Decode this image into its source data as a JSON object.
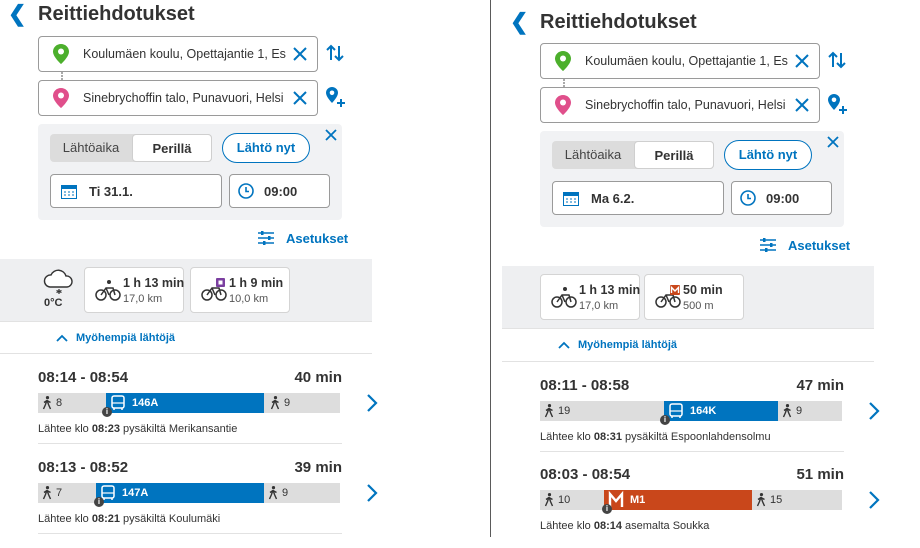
{
  "colors": {
    "brand": "#0074bf",
    "bus": "#0074bf",
    "metro": "#c9471b",
    "origin_pin": "#4caf2c",
    "destination_pin": "#e04f8b"
  },
  "left": {
    "title": "Reittiehdotukset",
    "origin": "Koulumäen koulu, Opettajantie 1, Es",
    "destination": "Sinebrychoffin talo, Punavuori, Helsi",
    "tab_departure": "Lähtöaika",
    "tab_arrival": "Perillä",
    "depart_now": "Lähtö nyt",
    "date": "Ti 31.1.",
    "time": "09:00",
    "settings": "Asetukset",
    "weather_temp": "0°C",
    "modes": [
      {
        "duration": "1 h 13 min",
        "distance": "17,0 km",
        "icon": "bicycle-icon"
      },
      {
        "duration": "1 h 9 min",
        "distance": "10,0 km",
        "icon": "bicycle-parking-icon"
      }
    ],
    "later": "Myöhempiä lähtöjä",
    "itineraries": [
      {
        "times": "08:14 - 08:54",
        "duration": "40 min",
        "walk_before": "8",
        "line": "146A",
        "mode": "bus",
        "walk_after": "9",
        "dep_prefix": "Lähtee klo",
        "dep_time": "08:23",
        "dep_suffix": "pysäkiltä Merikansantie"
      },
      {
        "times": "08:13 - 08:52",
        "duration": "39 min",
        "walk_before": "7",
        "line": "147A",
        "mode": "bus",
        "walk_after": "9",
        "dep_prefix": "Lähtee klo",
        "dep_time": "08:21",
        "dep_suffix": "pysäkiltä Koulumäki"
      }
    ]
  },
  "right": {
    "title": "Reittiehdotukset",
    "origin": "Koulumäen koulu, Opettajantie 1, Es",
    "destination": "Sinebrychoffin talo, Punavuori, Helsi",
    "tab_departure": "Lähtöaika",
    "tab_arrival": "Perillä",
    "depart_now": "Lähtö nyt",
    "date": "Ma 6.2.",
    "time": "09:00",
    "settings": "Asetukset",
    "modes": [
      {
        "duration": "1 h 13 min",
        "distance": "17,0 km",
        "icon": "bicycle-icon"
      },
      {
        "duration": "50 min",
        "distance": "500 m",
        "icon": "bicycle-metro-icon"
      }
    ],
    "later": "Myöhempiä lähtöjä",
    "itineraries": [
      {
        "times": "08:11 - 08:58",
        "duration": "47 min",
        "walk_before": "19",
        "line": "164K",
        "mode": "bus",
        "walk_after": "9",
        "dep_prefix": "Lähtee klo",
        "dep_time": "08:31",
        "dep_suffix": "pysäkiltä Espoonlahdensolmu"
      },
      {
        "times": "08:03 - 08:54",
        "duration": "51 min",
        "walk_before": "10",
        "line": "M1",
        "mode": "metro",
        "walk_after": "15",
        "dep_prefix": "Lähtee klo",
        "dep_time": "08:14",
        "dep_suffix": "asemalta Soukka"
      }
    ]
  }
}
